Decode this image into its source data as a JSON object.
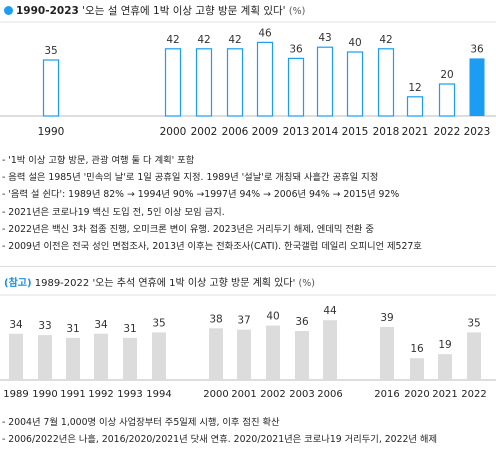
{
  "colors": {
    "accent": "#1a9df2",
    "bar_main": "#ffffff",
    "bar_main_border": "#1a9df2",
    "bar_ref": "#dcdcdc",
    "grid": "#e2e2e2"
  },
  "header": {
    "years": "1990-2023",
    "title": "'오는 설 연휴에 1박 이상 고향 방문 계획 있다'",
    "unit": "(%)"
  },
  "notes_main": [
    "- '1박 이상 고향 방문, 관광 여행 둘 다 계획' 포함",
    "- 음력 설은 1985년 '민속의 날'로 1일 공휴일 지정. 1989년 '설날'로 개칭돼 사흘간 공휴일 지정",
    "- '음력 설 쉰다': 1989년 82% → 1994년 90% →1997년 94% → 2006년 94% → 2015년 92%",
    "- 2021년은 코로나19 백신 도입 전, 5인 이상 모임 금지.",
    "- 2022년은 백신 3차 접종 진행, 오미크론 변이 유행. 2023년은 거리두기 해제, 엔데믹 전환 중",
    "- 2009년 이전은 전국 성인 면접조사, 2013년 이후는 전화조사(CATI). 한국갤럽 데일리 오피니언 제527호"
  ],
  "ref_header": {
    "tag": "(참고)",
    "years": "1989-2022",
    "title": "'오는 추석 연휴에 1박 이상 고향 방문 계획 있다'",
    "unit": "(%)"
  },
  "notes_ref": [
    "- 2004년 7월 1,000명 이상 사업장부터 주5일제 시행, 이후 점진 확산",
    "- 2006/2022년은 나흘, 2016/2020/2021년 닷새 연휴. 2020/2021년은 코로나19 거리두기, 2022년 해제"
  ],
  "chart_data": [
    {
      "type": "bar",
      "title": "'오는 설 연휴에 1박 이상 고향 방문 계획 있다'",
      "unit": "%",
      "ylim": [
        0,
        50
      ],
      "grid": false,
      "categories": [
        "1990",
        "2000",
        "2002",
        "2006",
        "2009",
        "2013",
        "2014",
        "2015",
        "2018",
        "2021",
        "2022",
        "2023"
      ],
      "values": [
        35,
        42,
        42,
        42,
        46,
        36,
        43,
        40,
        42,
        12,
        20,
        36
      ],
      "highlight": "2023"
    },
    {
      "type": "bar",
      "title": "'오는 추석 연휴에 1박 이상 고향 방문 계획 있다'",
      "unit": "%",
      "ylim": [
        0,
        50
      ],
      "grid": false,
      "categories": [
        "1989",
        "1990",
        "1991",
        "1992",
        "1993",
        "1994",
        "2000",
        "2001",
        "2002",
        "2003",
        "2006",
        "2016",
        "2020",
        "2021",
        "2022"
      ],
      "values": [
        34,
        33,
        31,
        34,
        31,
        35,
        38,
        37,
        40,
        36,
        44,
        39,
        16,
        19,
        35
      ]
    }
  ]
}
